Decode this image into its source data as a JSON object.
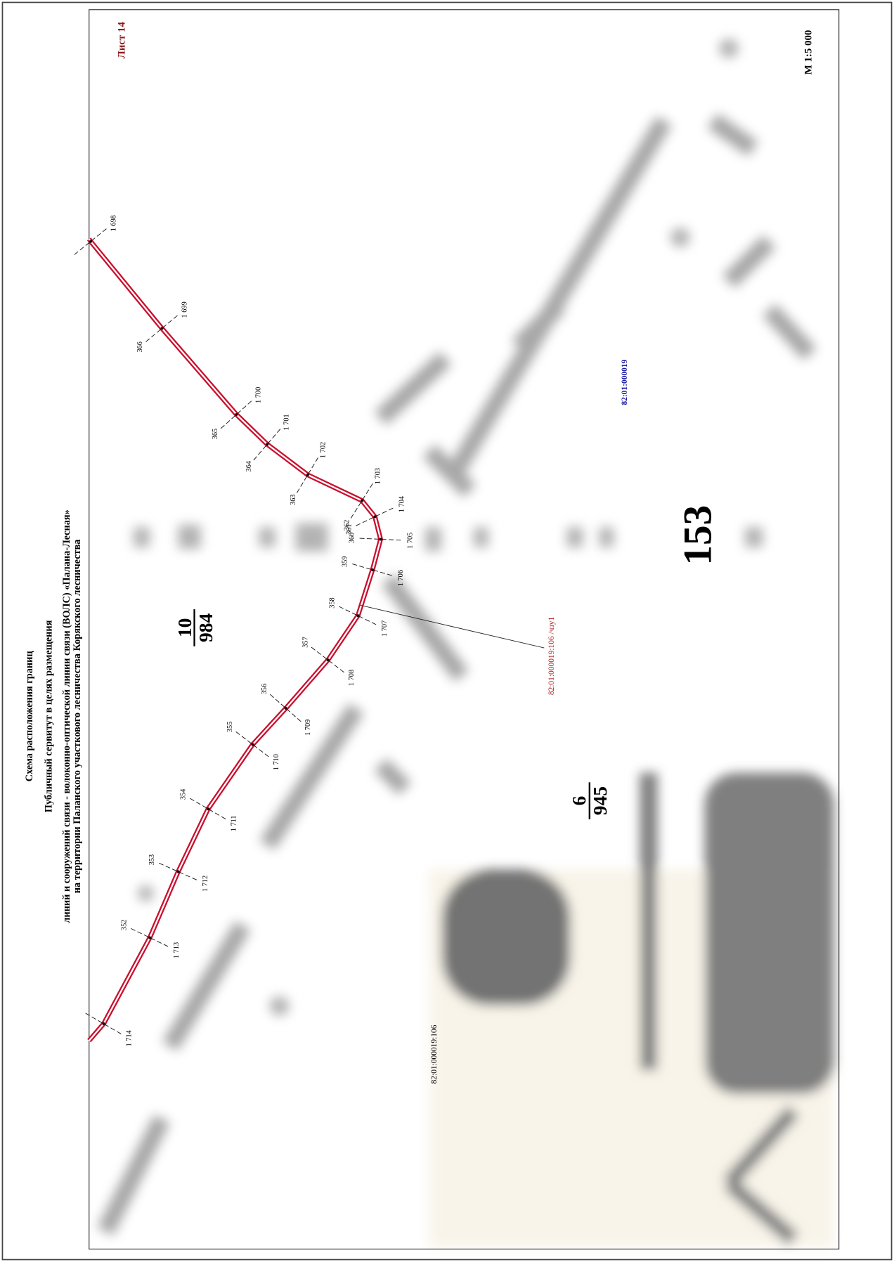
{
  "header": {
    "title": "Схема расположения границ",
    "lines": [
      "Публичный сервитут в целях размещения",
      "линий и сооружений связи - волоконно-оптической линии связи (ВОЛС) «Палана-Лесная»",
      "на территории Паланского участкового лесничества Корякского лесничества"
    ]
  },
  "sheet": "Лист 14",
  "scale": "М 1:5 000",
  "parcels": [
    {
      "num": "10",
      "den": "984"
    },
    {
      "num": "6",
      "den": "945"
    }
  ],
  "block": "153",
  "cadastral": {
    "quarter": "82:01:000019",
    "parcel": "82:01:000019:106",
    "part": "82:01:000019:106 /чзу1"
  },
  "points": [
    {
      "outer": "1 698"
    },
    {
      "outer": "1 699",
      "inner": "366"
    },
    {
      "outer": "1 700",
      "inner": "365"
    },
    {
      "outer": "1 701",
      "inner": "364"
    },
    {
      "outer": "1 702",
      "inner": "363"
    },
    {
      "outer": "1 703",
      "inner": "362"
    },
    {
      "outer": "1 704",
      "inner": "361"
    },
    {
      "outer": "1 705",
      "inner": "360"
    },
    {
      "outer": "1 706",
      "inner": "359"
    },
    {
      "outer": "1 707",
      "inner": "358"
    },
    {
      "outer": "1 708",
      "inner": "357"
    },
    {
      "outer": "1 709",
      "inner": "356"
    },
    {
      "outer": "1 710",
      "inner": "355"
    },
    {
      "outer": "1 711",
      "inner": "354"
    },
    {
      "outer": "1 712",
      "inner": "353"
    },
    {
      "outer": "1 713",
      "inner": "352"
    },
    {
      "outer": "1 714"
    }
  ]
}
